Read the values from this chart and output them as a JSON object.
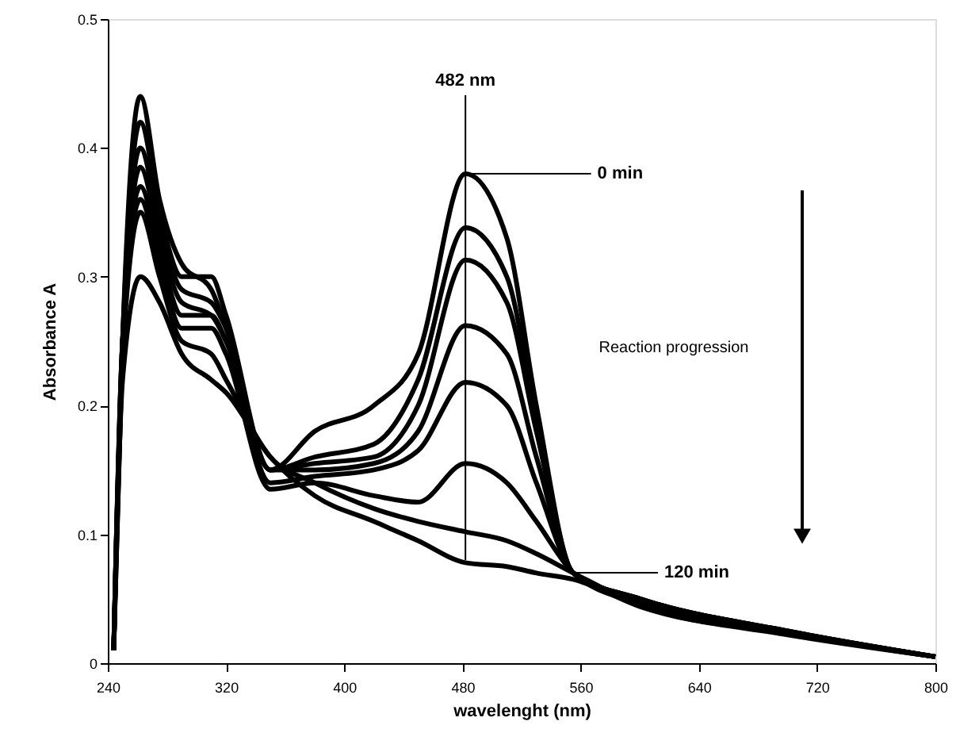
{
  "chart_data": {
    "type": "line",
    "xlabel": "wavelenght (nm)",
    "ylabel": "Absorbance A",
    "x": [
      244,
      250,
      262,
      275,
      290,
      310,
      320,
      350,
      380,
      420,
      450,
      482,
      510,
      530,
      555,
      600,
      700,
      800
    ],
    "series": [
      {
        "color": "#000000",
        "values": [
          0.01,
          0.25,
          0.44,
          0.36,
          0.31,
          0.29,
          0.26,
          0.15,
          0.18,
          0.2,
          0.24,
          0.38,
          0.33,
          0.2,
          0.07,
          0.05,
          0.025,
          0.005
        ]
      },
      {
        "color": "#000000",
        "values": [
          0.01,
          0.25,
          0.42,
          0.35,
          0.3,
          0.3,
          0.27,
          0.15,
          0.16,
          0.17,
          0.22,
          0.338,
          0.3,
          0.19,
          0.07,
          0.05,
          0.025,
          0.005
        ]
      },
      {
        "color": "#000000",
        "values": [
          0.01,
          0.25,
          0.4,
          0.34,
          0.29,
          0.28,
          0.26,
          0.15,
          0.155,
          0.16,
          0.2,
          0.313,
          0.28,
          0.18,
          0.07,
          0.05,
          0.025,
          0.005
        ]
      },
      {
        "color": "#000000",
        "values": [
          0.01,
          0.25,
          0.385,
          0.33,
          0.28,
          0.27,
          0.25,
          0.15,
          0.15,
          0.155,
          0.18,
          0.262,
          0.24,
          0.16,
          0.07,
          0.048,
          0.024,
          0.005
        ]
      },
      {
        "color": "#000000",
        "values": [
          0.01,
          0.25,
          0.37,
          0.32,
          0.27,
          0.27,
          0.25,
          0.14,
          0.145,
          0.15,
          0.165,
          0.218,
          0.2,
          0.14,
          0.07,
          0.047,
          0.024,
          0.005
        ]
      },
      {
        "color": "#000000",
        "values": [
          0.01,
          0.25,
          0.36,
          0.31,
          0.26,
          0.26,
          0.24,
          0.135,
          0.14,
          0.13,
          0.125,
          0.155,
          0.14,
          0.11,
          0.07,
          0.046,
          0.023,
          0.005
        ]
      },
      {
        "color": "#000000",
        "values": [
          0.01,
          0.24,
          0.35,
          0.3,
          0.25,
          0.24,
          0.22,
          0.16,
          0.14,
          0.12,
          0.11,
          0.102,
          0.095,
          0.085,
          0.07,
          0.045,
          0.023,
          0.005
        ]
      },
      {
        "color": "#000000",
        "values": [
          0.01,
          0.22,
          0.3,
          0.28,
          0.24,
          0.22,
          0.21,
          0.16,
          0.13,
          0.11,
          0.095,
          0.078,
          0.075,
          0.07,
          0.065,
          0.044,
          0.022,
          0.005
        ]
      }
    ],
    "xlim": [
      240,
      800
    ],
    "xticks": [
      240,
      320,
      400,
      480,
      560,
      640,
      720,
      800
    ],
    "ylim": [
      0,
      0.5
    ],
    "yticks": [
      0,
      0.1,
      0.2,
      0.3,
      0.4,
      0.5
    ],
    "ref_lines": [
      {
        "axis": "x",
        "value": 482,
        "label": "482 nm",
        "color": "#000000"
      }
    ],
    "annotations": [
      {
        "text": "0 min",
        "x": 482,
        "y": 0.38
      },
      "120 min",
      "Reaction progression"
    ],
    "grid": false,
    "marker": "none",
    "line_style": "solid"
  }
}
